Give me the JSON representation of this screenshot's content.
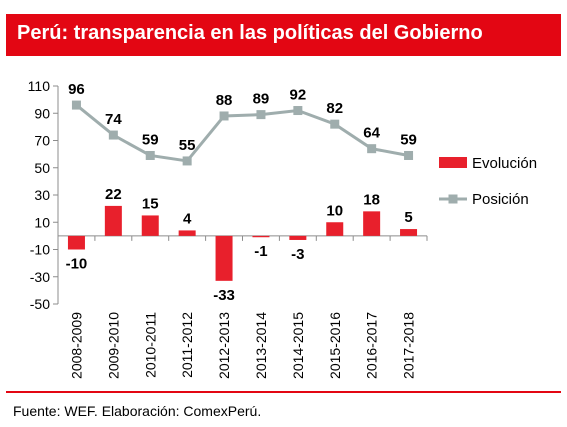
{
  "title": "Perú: transparencia en las políticas del Gobierno",
  "source": "Fuente: WEF. Elaboración: ComexPerú.",
  "colors": {
    "accent": "#e30613",
    "bar": "#e8202c",
    "line": "#9fadad",
    "axis": "#8c8c8c"
  },
  "chart_data": {
    "type": "bar+line",
    "categories": [
      "2008-2009",
      "2009-2010",
      "2010-2011",
      "2011-2012",
      "2012-2013",
      "2013-2014",
      "2014-2015",
      "2015-2016",
      "2016-2017",
      "2017-2018"
    ],
    "series": [
      {
        "name": "Evolución",
        "type": "bar",
        "values": [
          -10,
          22,
          15,
          4,
          -33,
          -1,
          -3,
          10,
          18,
          5
        ]
      },
      {
        "name": "Posición",
        "type": "line",
        "values": [
          96,
          74,
          59,
          55,
          88,
          89,
          92,
          82,
          64,
          59
        ]
      }
    ],
    "ylim": [
      -50,
      110
    ],
    "yticks": [
      110,
      90,
      70,
      50,
      30,
      10,
      -10,
      -30,
      -50
    ],
    "grid": false,
    "legend": "right"
  }
}
